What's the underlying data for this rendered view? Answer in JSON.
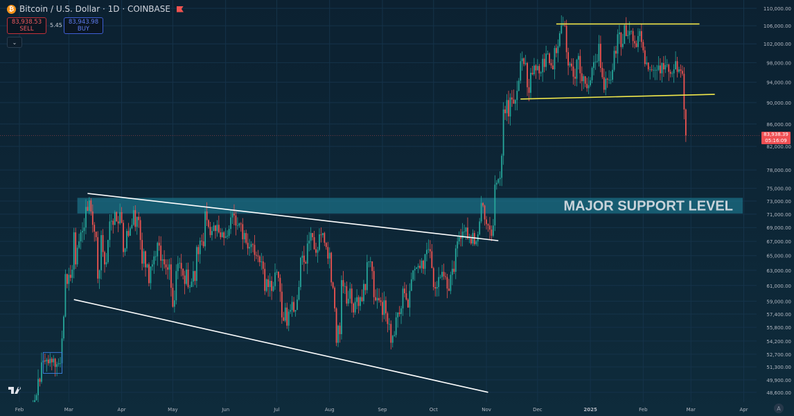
{
  "header": {
    "title": "Bitcoin / U.S. Dollar · 1D · COINBASE",
    "symbol_icon": "bitcoin-icon",
    "flag_icon": "flag-icon",
    "sell_price": "83,938.53",
    "sell_label": "SELL",
    "spread": "5.45",
    "buy_price": "83,943.98",
    "buy_label": "BUY"
  },
  "last_price": {
    "price": "83,938.39",
    "countdown": "05:16:09"
  },
  "auto_scale_label": "A",
  "colors": {
    "up": "#26a69a",
    "down": "#ef5350",
    "background": "#0c2233",
    "support_band": "#1b6f86",
    "yellow_lines": "#f2e84b",
    "white_lines": "#ffffff"
  },
  "chart_data": {
    "type": "candlestick",
    "scale": "log",
    "grid": true,
    "start_date": "2024-02-01",
    "ylim": [
      48000,
      111500
    ],
    "y_ticks": [
      "110,000.00",
      "106,000.00",
      "102,000.00",
      "98,000.00",
      "94,000.00",
      "90,000.00",
      "86,000.00",
      "82,000.00",
      "78,000.00",
      "75,000.00",
      "73,000.00",
      "71,000.00",
      "69,000.00",
      "67,000.00",
      "65,000.00",
      "63,000.00",
      "61,000.00",
      "59,000.00",
      "57,400.00",
      "55,800.00",
      "54,200.00",
      "52,700.00",
      "51,300.00",
      "49,900.00",
      "48,600.00"
    ],
    "x_ticks": [
      {
        "label": "Feb",
        "date": "2024-02-01"
      },
      {
        "label": "Mar",
        "date": "2024-03-01"
      },
      {
        "label": "Apr",
        "date": "2024-04-01"
      },
      {
        "label": "May",
        "date": "2024-05-01"
      },
      {
        "label": "Jun",
        "date": "2024-06-01"
      },
      {
        "label": "Jul",
        "date": "2024-07-01"
      },
      {
        "label": "Aug",
        "date": "2024-08-01"
      },
      {
        "label": "Sep",
        "date": "2024-09-01"
      },
      {
        "label": "Oct",
        "date": "2024-10-01"
      },
      {
        "label": "Nov",
        "date": "2024-11-01"
      },
      {
        "label": "Dec",
        "date": "2024-12-01"
      },
      {
        "label": "2025",
        "date": "2025-01-01"
      },
      {
        "label": "Feb",
        "date": "2025-02-01"
      },
      {
        "label": "Mar",
        "date": "2025-03-01"
      },
      {
        "label": "Apr",
        "date": "2025-04-01"
      }
    ],
    "closes": [
      43100,
      43200,
      43000,
      42600,
      42700,
      43100,
      44300,
      45300,
      47100,
      47800,
      48300,
      50000,
      49700,
      51800,
      52000,
      51900,
      52100,
      51700,
      52200,
      51800,
      52200,
      51300,
      51600,
      51700,
      51700,
      54500,
      57100,
      62500,
      61200,
      62400,
      62000,
      63100,
      68300,
      63800,
      66100,
      67000,
      68300,
      68500,
      69000,
      72100,
      71500,
      73100,
      71400,
      69400,
      68400,
      67600,
      61900,
      63000,
      67900,
      65500,
      63800,
      64100,
      67200,
      69900,
      70000,
      69400,
      71300,
      69900,
      69600,
      71300,
      69700,
      65500,
      66000,
      68500,
      67800,
      68900,
      69400,
      71600,
      69100,
      70600,
      70100,
      67200,
      63900,
      65600,
      63400,
      63800,
      61300,
      63500,
      63800,
      64900,
      64900,
      66800,
      66400,
      64300,
      64500,
      63800,
      63400,
      63100,
      63800,
      60700,
      58300,
      59100,
      62900,
      63900,
      64000,
      63200,
      62300,
      61200,
      63100,
      60800,
      60800,
      61500,
      62900,
      61600,
      66200,
      65200,
      67100,
      67000,
      66300,
      71400,
      70100,
      69100,
      67900,
      68500,
      69300,
      68500,
      69400,
      68300,
      67600,
      68300,
      67500,
      67700,
      67800,
      68800,
      70500,
      71100,
      70800,
      69300,
      69300,
      69600,
      69500,
      67300,
      68200,
      66800,
      66000,
      66200,
      66600,
      66500,
      65100,
      65000,
      64900,
      64100,
      64200,
      63200,
      60300,
      61800,
      60800,
      61600,
      60300,
      60900,
      62700,
      62800,
      62000,
      60200,
      57000,
      56600,
      58200,
      56000,
      57700,
      57900,
      58900,
      57700,
      57900,
      59200,
      60800,
      64700,
      65000,
      64100,
      63900,
      66700,
      67100,
      68200,
      67600,
      65900,
      65400,
      65800,
      68000,
      67900,
      68200,
      66800,
      66200,
      64600,
      65400,
      61400,
      60700,
      58100,
      54000,
      56000,
      55000,
      61700,
      60900,
      60900,
      58700,
      59300,
      60600,
      58700,
      57600,
      58900,
      59500,
      58400,
      59500,
      59000,
      61200,
      60400,
      64100,
      64200,
      64200,
      62900,
      59500,
      59100,
      59400,
      59100,
      58900,
      57300,
      59100,
      57500,
      56200,
      56200,
      54000,
      54800,
      54900,
      57000,
      57600,
      57400,
      58100,
      60600,
      60000,
      59200,
      58200,
      60300,
      61800,
      63000,
      63200,
      63400,
      63600,
      63300,
      64300,
      63200,
      65200,
      65800,
      65900,
      65600,
      63300,
      60800,
      60600,
      60800,
      62100,
      62100,
      62800,
      62200,
      62100,
      60600,
      60300,
      62400,
      63200,
      62800,
      66000,
      67000,
      67600,
      67400,
      68400,
      68400,
      69000,
      67400,
      67400,
      66700,
      68200,
      66600,
      67000,
      68000,
      69900,
      72700,
      72300,
      70200,
      69500,
      69300,
      68700,
      67800,
      69300,
      75600,
      75900,
      76500,
      76700,
      80400,
      88700,
      88000,
      90500,
      87400,
      91000,
      90600,
      89800,
      90500,
      92300,
      94300,
      98300,
      98900,
      97700,
      97900,
      93000,
      91900,
      95900,
      95600,
      97400,
      96400,
      97300,
      95800,
      96000,
      98800,
      97100,
      99900,
      99900,
      97900,
      97400,
      96600,
      101100,
      100000,
      101500,
      104300,
      106100,
      106100,
      106000,
      100200,
      97400,
      97800,
      97200,
      95100,
      94700,
      98600,
      99400,
      95800,
      94200,
      95200,
      93700,
      92800,
      93400,
      94400,
      96900,
      98100,
      98200,
      98300,
      102000,
      96900,
      95000,
      92500,
      94700,
      94500,
      94500,
      94500,
      96500,
      100500,
      99900,
      104100,
      104500,
      101300,
      102000,
      106100,
      103700,
      103900,
      104800,
      104800,
      102600,
      102100,
      101300,
      103700,
      104800,
      102400,
      100600,
      97700,
      98000,
      96600,
      96600,
      96500,
      96500,
      96500,
      96500,
      97400,
      95800,
      97900,
      96600,
      97500,
      97600,
      96100,
      95700,
      95800,
      96600,
      98300,
      96100,
      96600,
      96300,
      95700,
      88700,
      83938
    ],
    "annotations": {
      "support_band": {
        "label": "MAJOR SUPPORT LEVEL",
        "from_date": "2024-03-06",
        "price_low": 71100,
        "price_high": 73500
      },
      "lines": [
        {
          "name": "channel-upper",
          "color": "white",
          "from": [
            "2024-03-12",
            74200
          ],
          "to": [
            "2024-11-08",
            67100
          ]
        },
        {
          "name": "channel-lower",
          "color": "white",
          "from": [
            "2024-03-04",
            59200
          ],
          "to": [
            "2024-11-02",
            48600
          ]
        },
        {
          "name": "range-top",
          "color": "yellow",
          "from": [
            "2024-12-12",
            106400
          ],
          "to": [
            "2025-03-06",
            106400
          ]
        },
        {
          "name": "range-bottom",
          "color": "yellow",
          "from": [
            "2024-11-21",
            90700
          ],
          "to": [
            "2025-03-15",
            91600
          ]
        }
      ],
      "box": {
        "from_date": "2024-02-15",
        "to_date": "2024-02-26",
        "price_low": 50600,
        "price_high": 52900
      }
    }
  }
}
